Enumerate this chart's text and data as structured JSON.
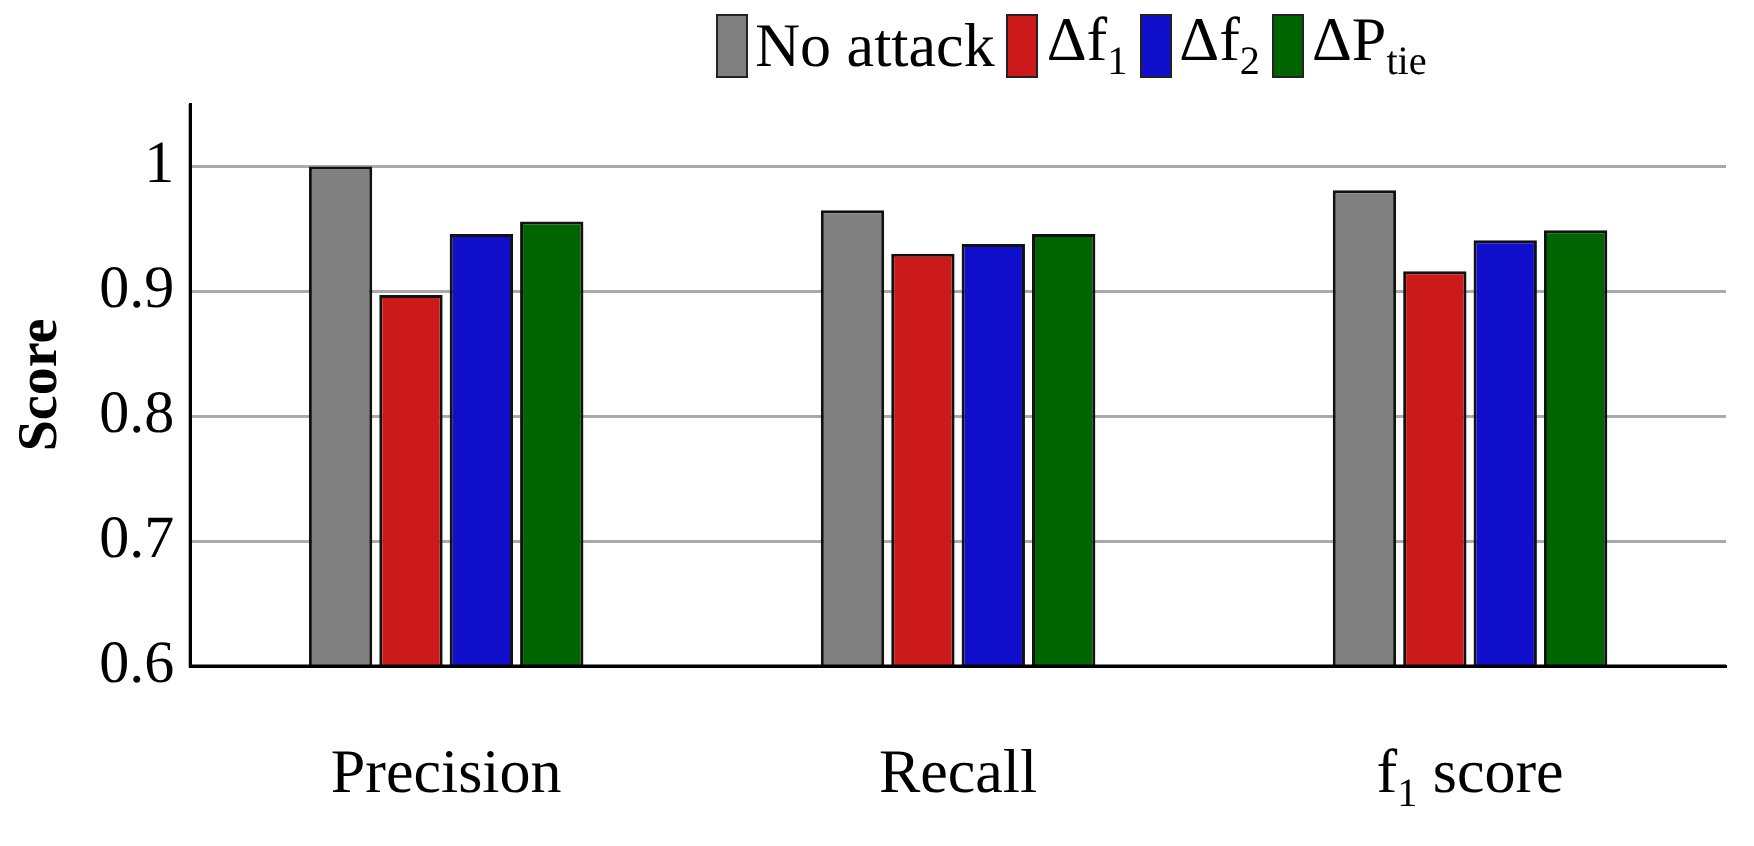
{
  "chart_data": {
    "type": "bar",
    "ylabel": "Score",
    "categories": [
      "Precision",
      "Recall",
      "f$_{1}$ score"
    ],
    "series": [
      {
        "name": "No attack",
        "color": "#808080",
        "values": [
          1.0,
          0.965,
          0.981
        ]
      },
      {
        "name": "Δf$_{1}$",
        "color": "#cc1a1a",
        "values": [
          0.897,
          0.93,
          0.916
        ]
      },
      {
        "name": "Δf$_{2}$",
        "color": "#1010cc",
        "values": [
          0.946,
          0.938,
          0.941
        ]
      },
      {
        "name": "ΔP$_{tie}$",
        "color": "#006400",
        "values": [
          0.956,
          0.946,
          0.949
        ]
      }
    ],
    "ylim": [
      0.6,
      1.05
    ],
    "yticks": [
      0.6,
      0.7,
      0.8,
      0.9,
      1
    ],
    "grid": "y",
    "legend": "top"
  }
}
